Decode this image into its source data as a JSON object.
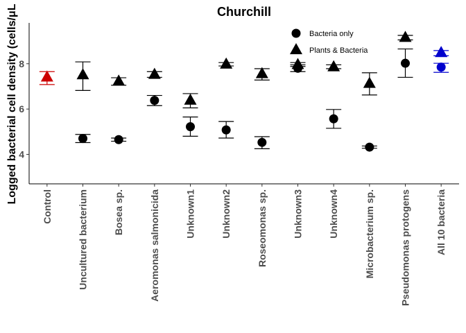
{
  "chart_data": {
    "type": "scatter",
    "title": "Churchill",
    "xlabel": "",
    "ylabel": "Logged bacterial cell density (cells/μL",
    "ylim": [
      2.7,
      9.8
    ],
    "yticks": [
      4,
      6,
      8
    ],
    "categories": [
      "Control",
      "Uncultured bacterium",
      "Bosea sp.",
      "Aeromonas salmonicida",
      "Unknown1",
      "Unknown2",
      "Roseomonas sp.",
      "Unknown3",
      "Unknown4",
      "Microbacterium sp.",
      "Pseudomonas protogens",
      "All 10 bacteria"
    ],
    "grid": false,
    "legend_position": "top-right",
    "legend": [
      {
        "label": "Bacteria only",
        "shape": "circle"
      },
      {
        "label": "Plants & Bacteria",
        "shape": "triangle"
      }
    ],
    "series": [
      {
        "name": "Bacteria only",
        "shape": "circle",
        "points": [
          {
            "category": "Uncultured bacterium",
            "y": 4.7,
            "ymin": 4.52,
            "ymax": 4.88,
            "color": "#000000"
          },
          {
            "category": "Bosea sp.",
            "y": 4.65,
            "ymin": 4.58,
            "ymax": 4.72,
            "color": "#000000"
          },
          {
            "category": "Aeromonas salmonicida",
            "y": 6.38,
            "ymin": 6.15,
            "ymax": 6.6,
            "color": "#000000"
          },
          {
            "category": "Unknown1",
            "y": 5.22,
            "ymin": 4.8,
            "ymax": 5.65,
            "color": "#000000"
          },
          {
            "category": "Unknown2",
            "y": 5.08,
            "ymin": 4.72,
            "ymax": 5.45,
            "color": "#000000"
          },
          {
            "category": "Roseomonas sp.",
            "y": 4.53,
            "ymin": 4.25,
            "ymax": 4.78,
            "color": "#000000"
          },
          {
            "category": "Unknown3",
            "y": 7.8,
            "ymin": 7.65,
            "ymax": 7.95,
            "color": "#000000"
          },
          {
            "category": "Unknown4",
            "y": 5.57,
            "ymin": 5.15,
            "ymax": 5.98,
            "color": "#000000"
          },
          {
            "category": "Microbacterium sp.",
            "y": 4.32,
            "ymin": 4.27,
            "ymax": 4.37,
            "color": "#000000"
          },
          {
            "category": "Pseudomonas protogens",
            "y": 8.02,
            "ymin": 7.4,
            "ymax": 8.65,
            "color": "#000000"
          },
          {
            "category": "All 10 bacteria",
            "y": 7.85,
            "ymin": 7.62,
            "ymax": 8.02,
            "color": "#0000cd"
          }
        ]
      },
      {
        "name": "Plants & Bacteria",
        "shape": "triangle",
        "points": [
          {
            "category": "Control",
            "y": 7.4,
            "ymin": 7.08,
            "ymax": 7.65,
            "color": "#cc0000"
          },
          {
            "category": "Uncultured bacterium",
            "y": 7.5,
            "ymin": 6.82,
            "ymax": 8.08,
            "color": "#000000"
          },
          {
            "category": "Bosea sp.",
            "y": 7.22,
            "ymin": 7.05,
            "ymax": 7.38,
            "color": "#000000"
          },
          {
            "category": "Aeromonas salmonicida",
            "y": 7.52,
            "ymin": 7.4,
            "ymax": 7.65,
            "color": "#000000"
          },
          {
            "category": "Unknown1",
            "y": 6.38,
            "ymin": 6.05,
            "ymax": 6.68,
            "color": "#000000"
          },
          {
            "category": "Unknown2",
            "y": 7.97,
            "ymin": 7.9,
            "ymax": 8.05,
            "color": "#000000"
          },
          {
            "category": "Roseomonas sp.",
            "y": 7.55,
            "ymin": 7.28,
            "ymax": 7.78,
            "color": "#000000"
          },
          {
            "category": "Unknown3",
            "y": 7.95,
            "ymin": 7.88,
            "ymax": 8.05,
            "color": "#000000"
          },
          {
            "category": "Unknown4",
            "y": 7.85,
            "ymin": 7.78,
            "ymax": 7.95,
            "color": "#000000"
          },
          {
            "category": "Microbacterium sp.",
            "y": 7.12,
            "ymin": 6.62,
            "ymax": 7.6,
            "color": "#000000"
          },
          {
            "category": "Pseudomonas protogens",
            "y": 9.15,
            "ymin": 9.05,
            "ymax": 9.25,
            "color": "#000000"
          },
          {
            "category": "All 10 bacteria",
            "y": 8.48,
            "ymin": 8.35,
            "ymax": 8.58,
            "color": "#0000cd"
          }
        ]
      }
    ]
  }
}
